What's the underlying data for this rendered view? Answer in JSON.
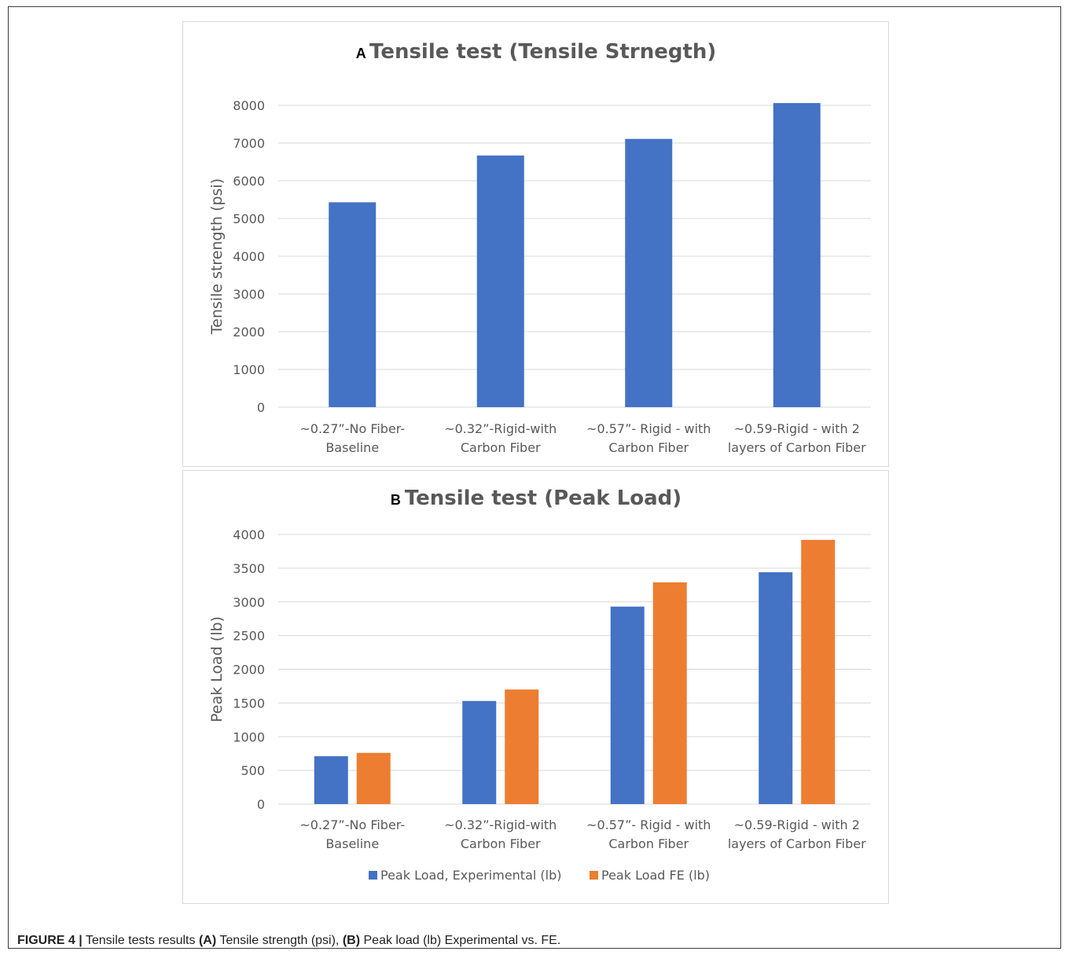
{
  "caption": {
    "figure_label": "FIGURE 4 |",
    "text_1": " Tensile tests results ",
    "label_a": "(A)",
    "text_2": " Tensile strength (psi), ",
    "label_b": "(B)",
    "text_3": " Peak load (lb) Experimental vs. FE."
  },
  "colors": {
    "blue": "#4472C4",
    "orange": "#ED7D31",
    "grid": "#d9d9d9",
    "text": "#595959"
  },
  "chart_data": [
    {
      "type": "bar",
      "panel_letter": "A",
      "title": "Tensile test (Tensile Strnegth)",
      "xlabel": "",
      "ylabel": "Tensile strength (psi)",
      "ylim": [
        0,
        8000
      ],
      "yticks": [
        0,
        1000,
        2000,
        3000,
        4000,
        5000,
        6000,
        7000,
        8000
      ],
      "grid": true,
      "categories": [
        [
          "~0.27”-No Fiber-",
          "Baseline"
        ],
        [
          "~0.32”-Rigid-with",
          "Carbon Fiber"
        ],
        [
          "~0.57”- Rigid - with",
          "Carbon Fiber"
        ],
        [
          "~0.59-Rigid - with 2",
          "layers of Carbon Fiber"
        ]
      ],
      "series": [
        {
          "values": [
            5430,
            6670,
            7110,
            8060
          ],
          "color": "#4472C4"
        }
      ]
    },
    {
      "type": "bar",
      "panel_letter": "B",
      "title": "Tensile test (Peak Load)",
      "xlabel": "",
      "ylabel": "Peak Load (lb)",
      "ylim": [
        0,
        4000
      ],
      "yticks": [
        0,
        500,
        1000,
        1500,
        2000,
        2500,
        3000,
        3500,
        4000
      ],
      "grid": true,
      "legend": "bottom",
      "categories": [
        [
          "~0.27”-No Fiber-",
          "Baseline"
        ],
        [
          "~0.32”-Rigid-with",
          "Carbon Fiber"
        ],
        [
          "~0.57”- Rigid - with",
          "Carbon Fiber"
        ],
        [
          "~0.59-Rigid - with 2",
          "layers of Carbon Fiber"
        ]
      ],
      "series": [
        {
          "name": "Peak Load, Experimental (lb)",
          "values": [
            710,
            1530,
            2930,
            3440
          ],
          "color": "#4472C4"
        },
        {
          "name": "Peak Load FE (lb)",
          "values": [
            760,
            1700,
            3290,
            3920
          ],
          "color": "#ED7D31"
        }
      ]
    }
  ]
}
